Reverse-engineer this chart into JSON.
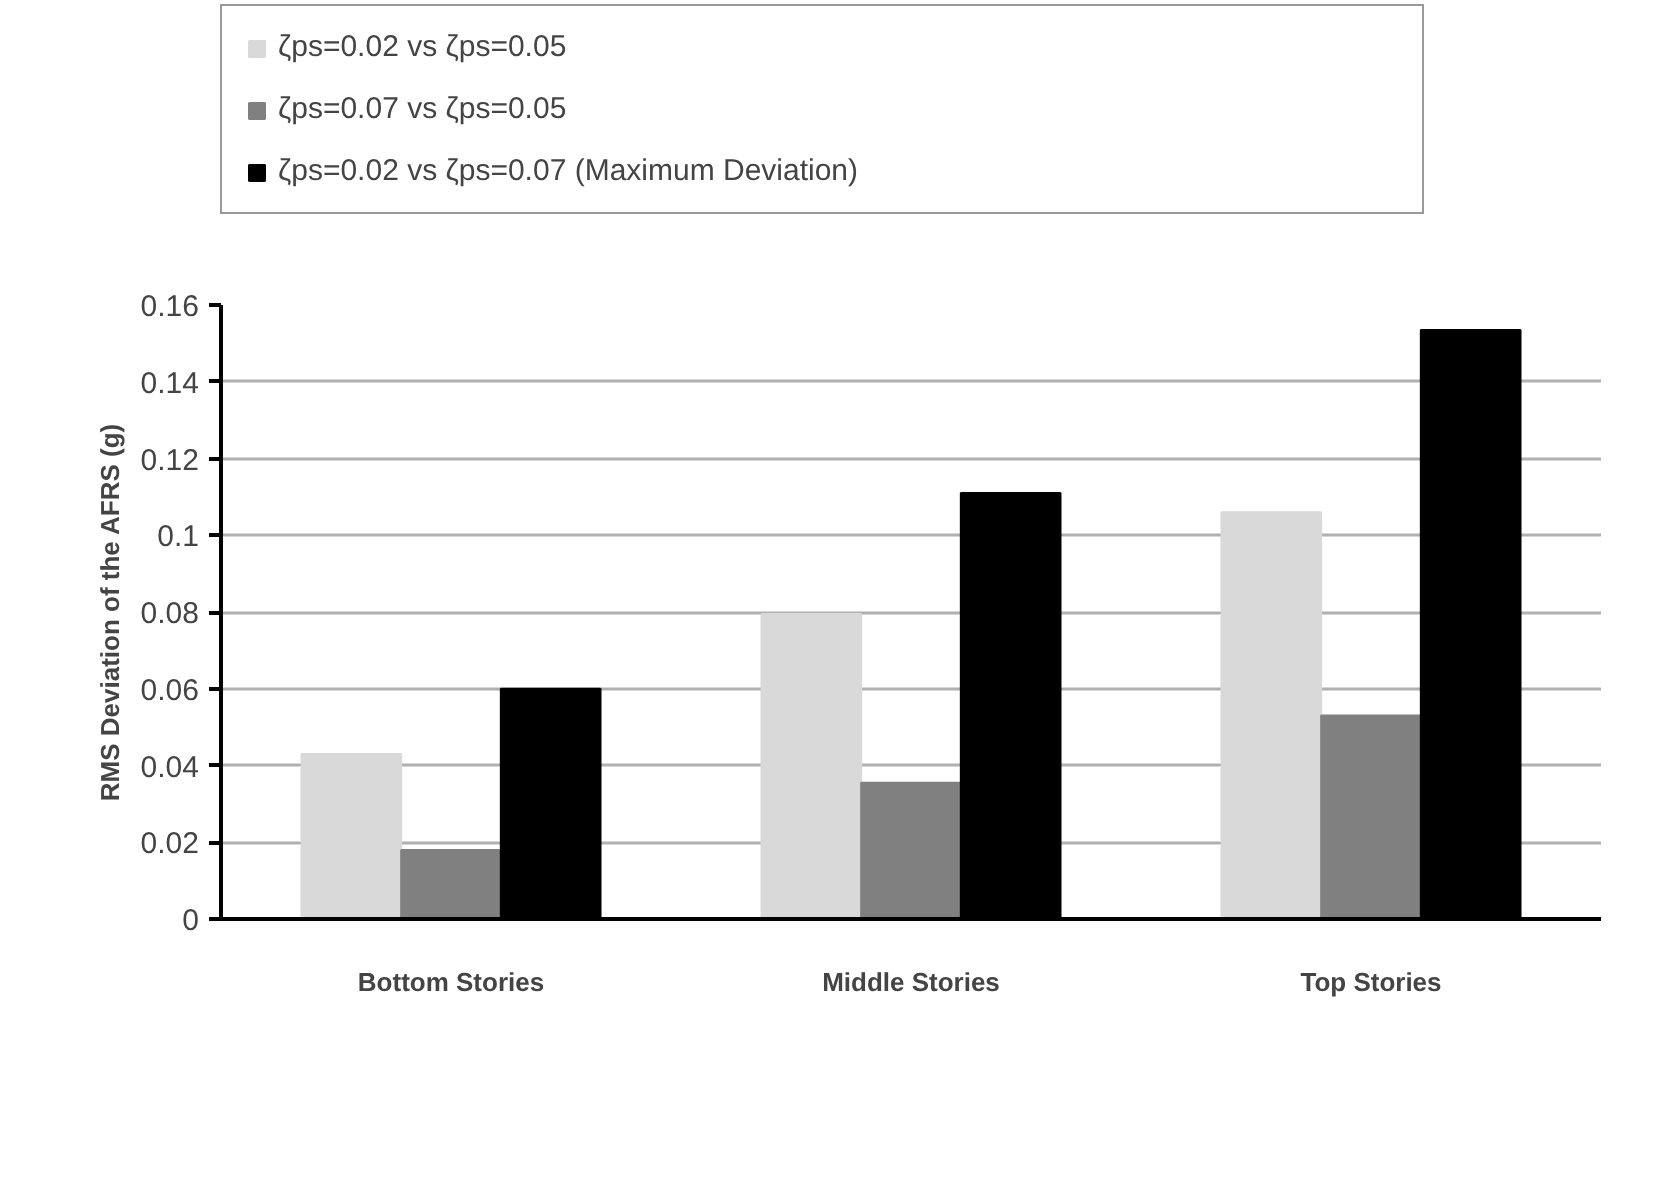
{
  "chart_data": {
    "type": "bar",
    "categories": [
      "Bottom Stories",
      "Middle Stories",
      "Top Stories"
    ],
    "ylabel": "RMS Deviation of the AFRS (g)",
    "series": [
      {
        "name": "ζps=0.02 vs ζps=0.05",
        "color": "#d9d9d9",
        "values": [
          0.043,
          0.0795,
          0.106
        ]
      },
      {
        "name": "ζps=0.07 vs ζps=0.05",
        "color": "#808080",
        "values": [
          0.018,
          0.0355,
          0.053
        ]
      },
      {
        "name": "ζps=0.02 vs ζps=0.07 (Maximum Deviation)",
        "color": "#000000",
        "values": [
          0.06,
          0.111,
          0.1535
        ]
      }
    ],
    "ylim": [
      0,
      0.16
    ],
    "yticks": [
      0,
      0.02,
      0.04,
      0.06,
      0.08,
      0.1,
      0.12,
      0.14,
      0.16
    ],
    "grid": "y",
    "legend": "top"
  }
}
